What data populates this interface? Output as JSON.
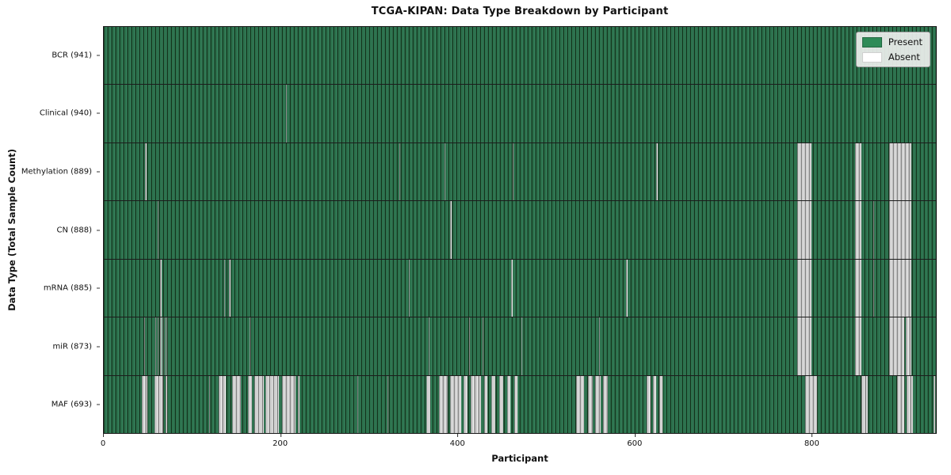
{
  "title": "TCGA-KIPAN: Data Type Breakdown by Participant",
  "xlabel": "Participant",
  "ylabel": "Data Type (Total Sample Count)",
  "legend": {
    "present_label": "Present",
    "absent_label": "Absent"
  },
  "colors": {
    "present": "#2e8b57",
    "absent": "#ffffff",
    "row_separator": "#1c1c1c",
    "legend_bg": "#edefed"
  },
  "chart_data": {
    "type": "heatmap",
    "title": "TCGA-KIPAN: Data Type Breakdown by Participant",
    "xlabel": "Participant",
    "ylabel": "Data Type (Total Sample Count)",
    "legend_entries": [
      "Present",
      "Absent"
    ],
    "legend_position": "upper right",
    "x_ticks": [
      0,
      200,
      400,
      600,
      800
    ],
    "x_max": 941,
    "grid": false,
    "rows": [
      {
        "label": "BCR (941)",
        "data_type": "BCR",
        "present_count": 941,
        "absent_ranges": []
      },
      {
        "label": "Clinical (940)",
        "data_type": "Clinical",
        "present_count": 940,
        "absent_ranges": [
          [
            206,
            207
          ]
        ]
      },
      {
        "label": "Methylation (889)",
        "data_type": "Methylation",
        "present_count": 889,
        "absent_ranges": [
          [
            47,
            48
          ],
          [
            334,
            335
          ],
          [
            385,
            386
          ],
          [
            462,
            463
          ],
          [
            625,
            626
          ],
          [
            784,
            800
          ],
          [
            850,
            857
          ],
          [
            888,
            913
          ]
        ]
      },
      {
        "label": "CN (888)",
        "data_type": "CN",
        "present_count": 888,
        "absent_ranges": [
          [
            61,
            62
          ],
          [
            392,
            393
          ],
          [
            784,
            800
          ],
          [
            850,
            857
          ],
          [
            870,
            871
          ],
          [
            888,
            913
          ]
        ]
      },
      {
        "label": "mRNA (885)",
        "data_type": "mRNA",
        "present_count": 885,
        "absent_ranges": [
          [
            64,
            65
          ],
          [
            136,
            137
          ],
          [
            142,
            143
          ],
          [
            345,
            346
          ],
          [
            461,
            462
          ],
          [
            591,
            592
          ],
          [
            784,
            800
          ],
          [
            850,
            857
          ],
          [
            870,
            871
          ],
          [
            888,
            913
          ]
        ]
      },
      {
        "label": "miR (873)",
        "data_type": "miR",
        "present_count": 873,
        "absent_ranges": [
          [
            46,
            47
          ],
          [
            58,
            59
          ],
          [
            61,
            62
          ],
          [
            64,
            65
          ],
          [
            66,
            67
          ],
          [
            69,
            70
          ],
          [
            71,
            72
          ],
          [
            165,
            166
          ],
          [
            367,
            368
          ],
          [
            413,
            414
          ],
          [
            428,
            429
          ],
          [
            472,
            473
          ],
          [
            560,
            561
          ],
          [
            784,
            800
          ],
          [
            850,
            857
          ],
          [
            888,
            905
          ],
          [
            907,
            913
          ]
        ]
      },
      {
        "label": "MAF (693)",
        "data_type": "MAF",
        "present_count": 693,
        "absent_ranges": [
          [
            43,
            49
          ],
          [
            57,
            67
          ],
          [
            70,
            72
          ],
          [
            119,
            120
          ],
          [
            130,
            138
          ],
          [
            145,
            155
          ],
          [
            163,
            168
          ],
          [
            170,
            181
          ],
          [
            183,
            198
          ],
          [
            202,
            217
          ],
          [
            220,
            221
          ],
          [
            287,
            288
          ],
          [
            321,
            322
          ],
          [
            365,
            369
          ],
          [
            379,
            389
          ],
          [
            392,
            404
          ],
          [
            407,
            411
          ],
          [
            415,
            427
          ],
          [
            430,
            434
          ],
          [
            438,
            443
          ],
          [
            447,
            452
          ],
          [
            456,
            460
          ],
          [
            464,
            468
          ],
          [
            534,
            543
          ],
          [
            548,
            553
          ],
          [
            556,
            562
          ],
          [
            565,
            570
          ],
          [
            614,
            618
          ],
          [
            621,
            625
          ],
          [
            628,
            632
          ],
          [
            793,
            807
          ],
          [
            857,
            864
          ],
          [
            897,
            905
          ],
          [
            908,
            915
          ],
          [
            938,
            940
          ]
        ]
      }
    ]
  }
}
